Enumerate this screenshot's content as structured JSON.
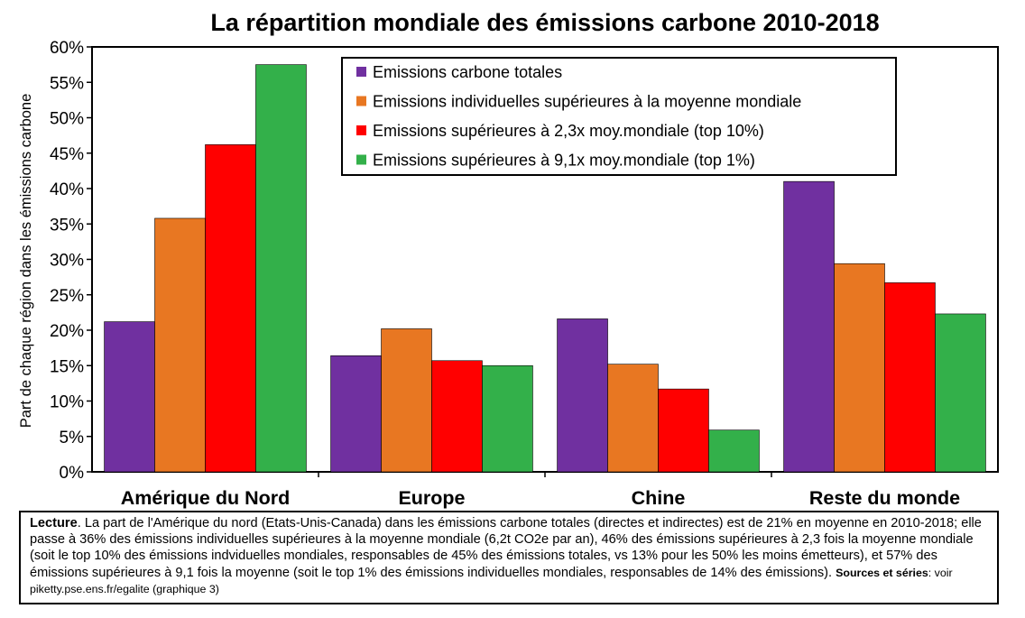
{
  "chart_data": {
    "type": "bar",
    "title": "La répartition mondiale des émissions carbone 2010-2018",
    "xlabel": "",
    "ylabel": "Part de chaque région dans les émissions carbone",
    "ylim": [
      0,
      60
    ],
    "yticks": [
      "0%",
      "5%",
      "10%",
      "15%",
      "20%",
      "25%",
      "30%",
      "35%",
      "40%",
      "45%",
      "50%",
      "55%",
      "60%"
    ],
    "grid": false,
    "legend_position": "top-right",
    "categories": [
      "Amérique du Nord",
      "Europe",
      "Chine",
      "Reste du monde"
    ],
    "series": [
      {
        "name": "Emissions carbone totales",
        "color": "#7030A0",
        "values": [
          21.2,
          16.4,
          21.6,
          41.0
        ]
      },
      {
        "name": "Emissions individuelles supérieures à la moyenne mondiale",
        "color": "#E87722",
        "values": [
          35.8,
          20.2,
          15.2,
          29.4
        ]
      },
      {
        "name": "Emissions supérieures à 2,3x moy.mondiale (top 10%)",
        "color": "#FF0000",
        "values": [
          46.2,
          15.7,
          11.7,
          26.7
        ]
      },
      {
        "name": "Emissions supérieures à 9,1x moy.mondiale (top 1%)",
        "color": "#33B04A",
        "values": [
          57.5,
          15.0,
          5.9,
          22.3
        ]
      }
    ]
  },
  "note": {
    "label": "Lecture",
    "text": ". La part de l'Amérique du nord (Etats-Unis-Canada) dans les émissions carbone totales (directes et indirectes) est de 21% en moyenne en 2010-2018; elle passe à 36% des émissions individuelles supérieures à la moyenne mondiale (6,2t CO2e par an), 46% des émissions supérieures à 2,3 fois la moyenne mondiale (soit le top 10% des émissions indviduelles mondiales, responsables de 45% des émissions totales, vs 13% pour les 50% les moins émetteurs), et 57% des émissions supérieures à 9,1 fois la moyenne (soit le top 1% des émissions individuelles mondiales, responsables de 14% des émissions).",
    "sources_label": "Sources et séries",
    "sources_text": ": voir piketty.pse.ens.fr/egalite (graphique 3)"
  }
}
